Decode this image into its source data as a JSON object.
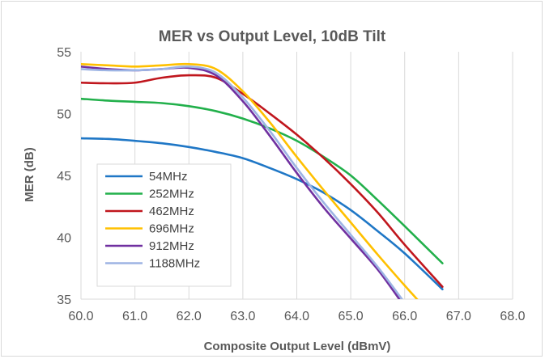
{
  "chart_data": {
    "type": "line",
    "title": "MER vs Output Level, 10dB Tilt",
    "xlabel": "Composite Output Level (dBmV)",
    "ylabel": "MER (dB)",
    "xlim": [
      60.0,
      68.0
    ],
    "ylim": [
      35,
      55
    ],
    "x_ticks": [
      "60.0",
      "61.0",
      "62.0",
      "63.0",
      "64.0",
      "65.0",
      "66.0",
      "67.0",
      "68.0"
    ],
    "y_ticks": [
      "35",
      "40",
      "45",
      "50",
      "55"
    ],
    "grid": "vertical",
    "legend_position": "bottom-left",
    "series": [
      {
        "name": "54MHz",
        "color": "#1f77c6",
        "points": [
          [
            60.0,
            48.0
          ],
          [
            60.5,
            47.95
          ],
          [
            61.0,
            47.8
          ],
          [
            61.5,
            47.6
          ],
          [
            62.0,
            47.3
          ],
          [
            62.5,
            46.9
          ],
          [
            63.0,
            46.4
          ],
          [
            63.5,
            45.6
          ],
          [
            64.0,
            44.7
          ],
          [
            64.5,
            43.6
          ],
          [
            65.0,
            42.2
          ],
          [
            65.5,
            40.5
          ],
          [
            66.0,
            38.7
          ],
          [
            66.7,
            35.8
          ]
        ]
      },
      {
        "name": "252MHz",
        "color": "#22b04b",
        "points": [
          [
            60.0,
            51.2
          ],
          [
            60.5,
            51.05
          ],
          [
            61.0,
            50.95
          ],
          [
            61.5,
            50.85
          ],
          [
            62.0,
            50.6
          ],
          [
            62.5,
            50.2
          ],
          [
            63.0,
            49.6
          ],
          [
            63.5,
            48.8
          ],
          [
            64.0,
            47.8
          ],
          [
            64.5,
            46.5
          ],
          [
            65.0,
            45.0
          ],
          [
            65.5,
            43.0
          ],
          [
            66.0,
            40.9
          ],
          [
            66.7,
            37.9
          ]
        ]
      },
      {
        "name": "462MHz",
        "color": "#c0161d",
        "points": [
          [
            60.0,
            52.5
          ],
          [
            60.5,
            52.45
          ],
          [
            61.0,
            52.5
          ],
          [
            61.5,
            52.9
          ],
          [
            62.0,
            53.1
          ],
          [
            62.5,
            52.9
          ],
          [
            63.0,
            51.6
          ],
          [
            63.5,
            50.0
          ],
          [
            64.0,
            48.3
          ],
          [
            64.5,
            46.4
          ],
          [
            65.0,
            44.3
          ],
          [
            65.5,
            42.0
          ],
          [
            66.0,
            39.4
          ],
          [
            66.7,
            36.0
          ]
        ]
      },
      {
        "name": "696MHz",
        "color": "#ffc000",
        "points": [
          [
            60.0,
            54.0
          ],
          [
            60.5,
            53.9
          ],
          [
            61.0,
            53.8
          ],
          [
            61.5,
            53.9
          ],
          [
            62.0,
            54.0
          ],
          [
            62.5,
            53.6
          ],
          [
            63.0,
            51.8
          ],
          [
            63.5,
            49.3
          ],
          [
            64.0,
            46.5
          ],
          [
            64.5,
            43.8
          ],
          [
            65.0,
            41.2
          ],
          [
            65.5,
            38.6
          ],
          [
            66.0,
            36.1
          ],
          [
            66.25,
            34.9
          ]
        ]
      },
      {
        "name": "912MHz",
        "color": "#7030a0",
        "points": [
          [
            60.0,
            53.8
          ],
          [
            60.5,
            53.6
          ],
          [
            61.0,
            53.5
          ],
          [
            61.5,
            53.6
          ],
          [
            62.0,
            53.7
          ],
          [
            62.5,
            53.1
          ],
          [
            63.0,
            51.0
          ],
          [
            63.5,
            48.2
          ],
          [
            64.0,
            45.2
          ],
          [
            64.5,
            42.4
          ],
          [
            65.0,
            39.9
          ],
          [
            65.5,
            37.4
          ],
          [
            65.9,
            35.0
          ]
        ]
      },
      {
        "name": "1188MHz",
        "color": "#9db4e4",
        "points": [
          [
            60.0,
            53.6
          ],
          [
            60.5,
            53.5
          ],
          [
            61.0,
            53.5
          ],
          [
            61.5,
            53.6
          ],
          [
            62.0,
            53.8
          ],
          [
            62.5,
            53.3
          ],
          [
            63.0,
            51.3
          ],
          [
            63.5,
            48.6
          ],
          [
            64.0,
            45.6
          ],
          [
            64.5,
            42.8
          ],
          [
            65.0,
            40.2
          ],
          [
            65.5,
            37.6
          ],
          [
            65.95,
            35.0
          ]
        ]
      }
    ]
  }
}
